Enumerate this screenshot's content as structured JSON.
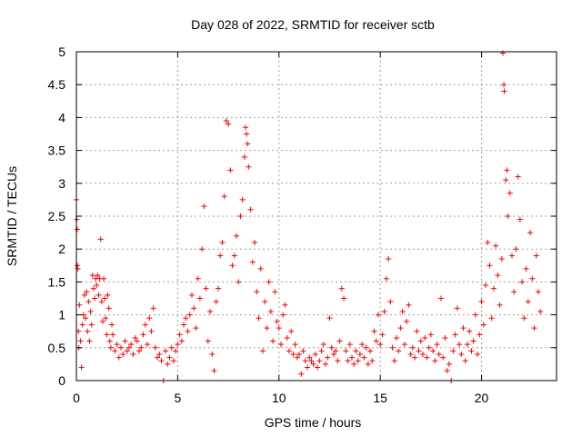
{
  "chart_data": {
    "type": "scatter",
    "title": "Day 028 of 2022, SRMTID for receiver sctb",
    "xlabel": "GPS time / hours",
    "ylabel": "SRMTID / TECUs",
    "xlim": [
      0,
      23.7
    ],
    "ylim": [
      0,
      5
    ],
    "xticks": [
      0,
      5,
      10,
      15,
      20
    ],
    "xtick_labels": [
      "0",
      "5",
      "10",
      "15",
      "20"
    ],
    "yticks": [
      0,
      0.5,
      1,
      1.5,
      2,
      2.5,
      3,
      3.5,
      4,
      4.5,
      5
    ],
    "ytick_labels": [
      "0",
      "0.5",
      "1",
      "1.5",
      "2",
      "2.5",
      "3",
      "3.5",
      "4",
      "4.5",
      "5"
    ],
    "grid": true,
    "marker": "plus",
    "color": "#ff0000",
    "series": [
      {
        "name": "SRMTID",
        "points": [
          [
            0.0,
            2.75
          ],
          [
            0.02,
            2.45
          ],
          [
            0.04,
            2.3
          ],
          [
            0.05,
            1.75
          ],
          [
            0.07,
            1.7
          ],
          [
            0.1,
            0.75
          ],
          [
            0.12,
            0.5
          ],
          [
            0.15,
            1.15
          ],
          [
            0.2,
            0.6
          ],
          [
            0.25,
            0.2
          ],
          [
            0.3,
            0.85
          ],
          [
            0.35,
            1.0
          ],
          [
            0.4,
            1.3
          ],
          [
            0.45,
            0.95
          ],
          [
            0.5,
            1.35
          ],
          [
            0.55,
            0.75
          ],
          [
            0.6,
            1.2
          ],
          [
            0.65,
            0.6
          ],
          [
            0.7,
            1.05
          ],
          [
            0.75,
            0.85
          ],
          [
            0.8,
            1.6
          ],
          [
            0.85,
            1.4
          ],
          [
            0.9,
            1.25
          ],
          [
            0.95,
            1.55
          ],
          [
            1.0,
            1.45
          ],
          [
            1.05,
            1.6
          ],
          [
            1.1,
            1.3
          ],
          [
            1.15,
            1.55
          ],
          [
            1.2,
            2.15
          ],
          [
            1.25,
            1.2
          ],
          [
            1.3,
            0.9
          ],
          [
            1.35,
            1.55
          ],
          [
            1.4,
            1.25
          ],
          [
            1.45,
            0.95
          ],
          [
            1.5,
            0.7
          ],
          [
            1.55,
            1.3
          ],
          [
            1.6,
            1.1
          ],
          [
            1.65,
            0.6
          ],
          [
            1.7,
            0.5
          ],
          [
            1.75,
            0.85
          ],
          [
            1.8,
            0.7
          ],
          [
            1.9,
            0.45
          ],
          [
            2.0,
            0.55
          ],
          [
            2.1,
            0.35
          ],
          [
            2.2,
            0.5
          ],
          [
            2.3,
            0.4
          ],
          [
            2.4,
            0.6
          ],
          [
            2.5,
            0.45
          ],
          [
            2.6,
            0.5
          ],
          [
            2.7,
            0.55
          ],
          [
            2.8,
            0.4
          ],
          [
            2.9,
            0.65
          ],
          [
            3.0,
            0.6
          ],
          [
            3.1,
            0.45
          ],
          [
            3.2,
            0.5
          ],
          [
            3.3,
            0.7
          ],
          [
            3.4,
            0.85
          ],
          [
            3.5,
            0.55
          ],
          [
            3.6,
            0.95
          ],
          [
            3.7,
            0.75
          ],
          [
            3.8,
            1.1
          ],
          [
            3.9,
            0.5
          ],
          [
            4.0,
            0.35
          ],
          [
            4.1,
            0.4
          ],
          [
            4.2,
            0.3
          ],
          [
            4.3,
            0.0
          ],
          [
            4.4,
            0.45
          ],
          [
            4.5,
            0.25
          ],
          [
            4.6,
            0.35
          ],
          [
            4.7,
            0.5
          ],
          [
            4.8,
            0.3
          ],
          [
            4.9,
            0.45
          ],
          [
            5.0,
            0.55
          ],
          [
            5.1,
            0.7
          ],
          [
            5.2,
            0.6
          ],
          [
            5.3,
            0.85
          ],
          [
            5.4,
            0.95
          ],
          [
            5.5,
            0.75
          ],
          [
            5.6,
            1.0
          ],
          [
            5.7,
            1.3
          ],
          [
            5.8,
            1.1
          ],
          [
            5.9,
            0.8
          ],
          [
            6.0,
            1.55
          ],
          [
            6.1,
            1.25
          ],
          [
            6.2,
            2.0
          ],
          [
            6.3,
            2.65
          ],
          [
            6.4,
            1.4
          ],
          [
            6.5,
            0.6
          ],
          [
            6.6,
            1.05
          ],
          [
            6.7,
            0.4
          ],
          [
            6.8,
            0.15
          ],
          [
            6.9,
            1.2
          ],
          [
            7.0,
            1.4
          ],
          [
            7.1,
            1.9
          ],
          [
            7.2,
            2.1
          ],
          [
            7.3,
            2.8
          ],
          [
            7.4,
            3.95
          ],
          [
            7.5,
            3.9
          ],
          [
            7.6,
            3.2
          ],
          [
            7.7,
            1.75
          ],
          [
            7.8,
            1.9
          ],
          [
            7.9,
            2.2
          ],
          [
            8.0,
            1.5
          ],
          [
            8.1,
            2.5
          ],
          [
            8.2,
            2.75
          ],
          [
            8.3,
            3.4
          ],
          [
            8.35,
            3.85
          ],
          [
            8.4,
            3.75
          ],
          [
            8.45,
            3.6
          ],
          [
            8.5,
            3.25
          ],
          [
            8.6,
            2.6
          ],
          [
            8.7,
            1.8
          ],
          [
            8.8,
            2.1
          ],
          [
            8.9,
            1.35
          ],
          [
            9.0,
            0.95
          ],
          [
            9.1,
            1.7
          ],
          [
            9.2,
            0.45
          ],
          [
            9.3,
            1.2
          ],
          [
            9.4,
            0.8
          ],
          [
            9.5,
            1.5
          ],
          [
            9.6,
            1.05
          ],
          [
            9.7,
            0.6
          ],
          [
            9.8,
            1.35
          ],
          [
            9.9,
            0.9
          ],
          [
            10.0,
            0.8
          ],
          [
            10.1,
            0.55
          ],
          [
            10.2,
            1.0
          ],
          [
            10.3,
            1.15
          ],
          [
            10.4,
            0.65
          ],
          [
            10.5,
            0.45
          ],
          [
            10.6,
            0.75
          ],
          [
            10.7,
            0.4
          ],
          [
            10.8,
            0.55
          ],
          [
            10.9,
            0.35
          ],
          [
            11.0,
            0.4
          ],
          [
            11.1,
            0.1
          ],
          [
            11.2,
            0.45
          ],
          [
            11.3,
            0.3
          ],
          [
            11.4,
            0.2
          ],
          [
            11.5,
            0.35
          ],
          [
            11.6,
            0.3
          ],
          [
            11.7,
            0.25
          ],
          [
            11.8,
            0.4
          ],
          [
            11.9,
            0.2
          ],
          [
            12.0,
            0.3
          ],
          [
            12.1,
            0.45
          ],
          [
            12.2,
            0.55
          ],
          [
            12.3,
            0.25
          ],
          [
            12.4,
            0.35
          ],
          [
            12.5,
            0.95
          ],
          [
            12.6,
            0.5
          ],
          [
            12.7,
            0.4
          ],
          [
            12.8,
            0.45
          ],
          [
            12.9,
            0.3
          ],
          [
            13.0,
            0.6
          ],
          [
            13.1,
            1.4
          ],
          [
            13.2,
            1.25
          ],
          [
            13.3,
            0.45
          ],
          [
            13.4,
            0.3
          ],
          [
            13.5,
            0.55
          ],
          [
            13.6,
            0.35
          ],
          [
            13.7,
            0.25
          ],
          [
            13.8,
            0.45
          ],
          [
            13.9,
            0.3
          ],
          [
            14.0,
            0.4
          ],
          [
            14.1,
            0.55
          ],
          [
            14.2,
            0.35
          ],
          [
            14.3,
            0.5
          ],
          [
            14.4,
            0.25
          ],
          [
            14.5,
            0.45
          ],
          [
            14.6,
            0.3
          ],
          [
            14.7,
            0.75
          ],
          [
            14.8,
            0.6
          ],
          [
            14.9,
            1.0
          ],
          [
            15.0,
            0.55
          ],
          [
            15.1,
            0.7
          ],
          [
            15.2,
            1.05
          ],
          [
            15.3,
            1.55
          ],
          [
            15.4,
            1.85
          ],
          [
            15.5,
            1.2
          ],
          [
            15.6,
            0.5
          ],
          [
            15.7,
            0.3
          ],
          [
            15.8,
            0.65
          ],
          [
            15.9,
            0.45
          ],
          [
            16.0,
            0.8
          ],
          [
            16.1,
            1.05
          ],
          [
            16.2,
            0.55
          ],
          [
            16.3,
            0.9
          ],
          [
            16.4,
            1.15
          ],
          [
            16.5,
            0.4
          ],
          [
            16.6,
            0.5
          ],
          [
            16.7,
            0.35
          ],
          [
            16.8,
            0.75
          ],
          [
            16.9,
            0.45
          ],
          [
            17.0,
            0.6
          ],
          [
            17.1,
            0.4
          ],
          [
            17.2,
            0.65
          ],
          [
            17.3,
            0.35
          ],
          [
            17.4,
            0.5
          ],
          [
            17.5,
            0.7
          ],
          [
            17.6,
            0.45
          ],
          [
            17.7,
            0.3
          ],
          [
            17.8,
            0.55
          ],
          [
            17.9,
            0.4
          ],
          [
            18.0,
            1.25
          ],
          [
            18.1,
            0.35
          ],
          [
            18.2,
            0.65
          ],
          [
            18.3,
            0.15
          ],
          [
            18.4,
            0.25
          ],
          [
            18.5,
            0.0
          ],
          [
            18.6,
            0.45
          ],
          [
            18.7,
            0.7
          ],
          [
            18.8,
            1.1
          ],
          [
            18.9,
            0.55
          ],
          [
            19.0,
            0.4
          ],
          [
            19.1,
            0.8
          ],
          [
            19.2,
            0.3
          ],
          [
            19.3,
            0.55
          ],
          [
            19.4,
            0.75
          ],
          [
            19.5,
            0.45
          ],
          [
            19.6,
            0.6
          ],
          [
            19.7,
            1.0
          ],
          [
            19.8,
            0.4
          ],
          [
            19.9,
            0.7
          ],
          [
            20.0,
            1.2
          ],
          [
            20.1,
            0.85
          ],
          [
            20.2,
            1.45
          ],
          [
            20.3,
            2.1
          ],
          [
            20.4,
            1.75
          ],
          [
            20.5,
            0.95
          ],
          [
            20.6,
            1.4
          ],
          [
            20.7,
            2.05
          ],
          [
            20.8,
            1.6
          ],
          [
            20.9,
            1.15
          ],
          [
            21.0,
            1.85
          ],
          [
            21.05,
            4.98
          ],
          [
            21.1,
            4.5
          ],
          [
            21.12,
            4.4
          ],
          [
            21.2,
            3.05
          ],
          [
            21.25,
            3.2
          ],
          [
            21.3,
            2.5
          ],
          [
            21.4,
            2.85
          ],
          [
            21.5,
            1.9
          ],
          [
            21.6,
            1.35
          ],
          [
            21.7,
            2.0
          ],
          [
            21.8,
            3.1
          ],
          [
            21.9,
            2.45
          ],
          [
            22.0,
            1.5
          ],
          [
            22.1,
            0.95
          ],
          [
            22.2,
            1.7
          ],
          [
            22.3,
            1.2
          ],
          [
            22.4,
            2.25
          ],
          [
            22.5,
            1.55
          ],
          [
            22.6,
            0.8
          ],
          [
            22.7,
            1.9
          ],
          [
            22.8,
            1.35
          ],
          [
            22.9,
            1.05
          ]
        ]
      }
    ]
  }
}
